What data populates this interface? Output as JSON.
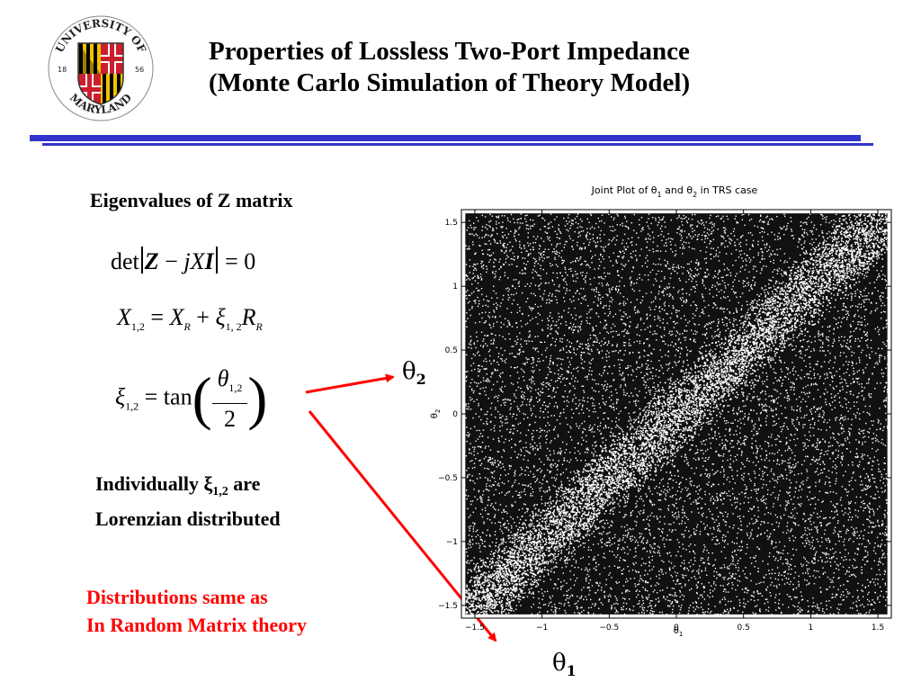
{
  "slide": {
    "title_line1": "Properties of Lossless Two-Port Impedance",
    "title_line2": "(Monte Carlo Simulation of Theory Model)",
    "subheading": "Eigenvalues of Z matrix",
    "note_line1_prefix": "Individually ",
    "note_line1_xi": "ξ",
    "note_line1_sub": "1,2",
    "note_line1_suffix": "  are",
    "note_line2": "Lorenzian distributed",
    "red_line1": "Distributions same as",
    "red_line2": "In Random Matrix theory",
    "theta2_label": "θ",
    "theta2_sub": "2",
    "theta1_label": "θ",
    "theta1_sub": "1"
  },
  "logo": {
    "top_text": "UNIVERSITY OF",
    "bottom_text": "MARYLAND",
    "left_year": "18",
    "right_year": "56"
  },
  "equations": {
    "eq1": {
      "det": "det",
      "Z": "Z",
      "minus": " − ",
      "j": "j",
      "X": "X",
      "I": "I",
      "equals": " = 0"
    },
    "eq2": {
      "X": "X",
      "sub12": "1,2",
      "eq": " = ",
      "XR": "X",
      "subR": "R",
      "plus": " + ",
      "xi": "ξ",
      "xisub": "1, 2",
      "R": "R",
      "subR2": "R"
    },
    "eq3": {
      "xi": "ξ",
      "sub": "1,2",
      "eq": " = tan",
      "theta": "θ",
      "thetasub": "1,2",
      "den": "2"
    }
  },
  "colors": {
    "rule": "#3333cc",
    "arrow": "#ff0000",
    "highlight": "#ff0000"
  },
  "chart_data": {
    "type": "scatter",
    "title": "Joint Plot of θ1 and θ2 in TRS case",
    "xlabel": "θ1",
    "ylabel": "θ2",
    "xlim": [
      -1.6,
      1.6
    ],
    "ylim": [
      -1.6,
      1.6
    ],
    "xticks": [
      "-1.5",
      "-1",
      "-0.5",
      "0",
      "0.5",
      "1",
      "1.5"
    ],
    "yticks": [
      "1.5",
      "1",
      "0.5",
      "0",
      "-0.5",
      "-1",
      "-1.5"
    ],
    "tick_values": [
      -1.5,
      -1,
      -0.5,
      0,
      0.5,
      1,
      1.5
    ],
    "data_range": [
      -1.5708,
      1.5708
    ],
    "description_feature": "diagonal band of low density along θ1 = θ2",
    "grid": false
  }
}
